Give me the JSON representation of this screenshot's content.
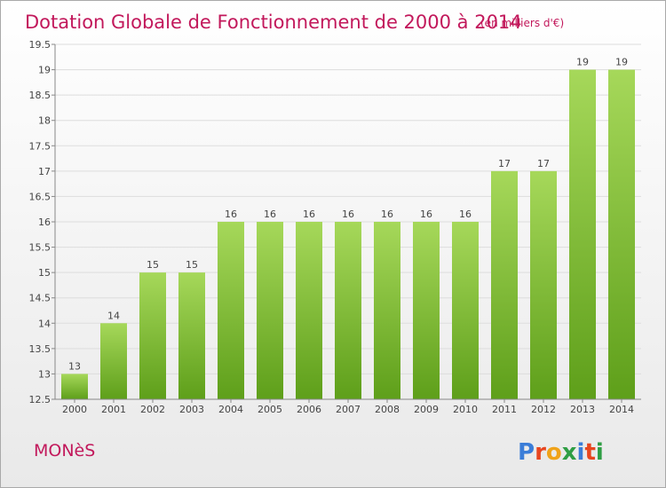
{
  "title": "Dotation Globale de Fonctionnement de 2000 à 2014",
  "unit": "(en milliers d'€)",
  "commune": "MONèS",
  "brand": {
    "letters": [
      "P",
      "r",
      "o",
      "x",
      "i",
      "t",
      "i"
    ],
    "colors": [
      "#3b7dd8",
      "#e8461f",
      "#f0a31a",
      "#2f9e44",
      "#3b7dd8",
      "#e8461f",
      "#2f9e44"
    ]
  },
  "colors": {
    "title": "#c2185b",
    "bar_top": "#a6d85a",
    "bar_bottom": "#5e9f1a",
    "grid": "#dddddd",
    "axis": "#888888"
  },
  "chart_data": {
    "type": "bar",
    "categories": [
      "2000",
      "2001",
      "2002",
      "2003",
      "2004",
      "2005",
      "2006",
      "2007",
      "2008",
      "2009",
      "2010",
      "2011",
      "2012",
      "2013",
      "2014"
    ],
    "values": [
      13,
      14,
      15,
      15,
      16,
      16,
      16,
      16,
      16,
      16,
      16,
      17,
      17,
      19,
      19
    ],
    "labels": [
      "13",
      "14",
      "15",
      "15",
      "16",
      "16",
      "16",
      "16",
      "16",
      "16",
      "16",
      "17",
      "17",
      "19",
      "19"
    ],
    "ylim": [
      12.5,
      19.5
    ],
    "yticks": [
      12.5,
      13,
      13.5,
      14,
      14.5,
      15,
      15.5,
      16,
      16.5,
      17,
      17.5,
      18,
      18.5,
      19,
      19.5
    ],
    "ytick_labels": [
      "12.5",
      "13",
      "13.5",
      "14",
      "14.5",
      "15",
      "15.5",
      "16",
      "16.5",
      "17",
      "17.5",
      "18",
      "18.5",
      "19",
      "19.5"
    ],
    "grid": true,
    "legend": "none"
  }
}
